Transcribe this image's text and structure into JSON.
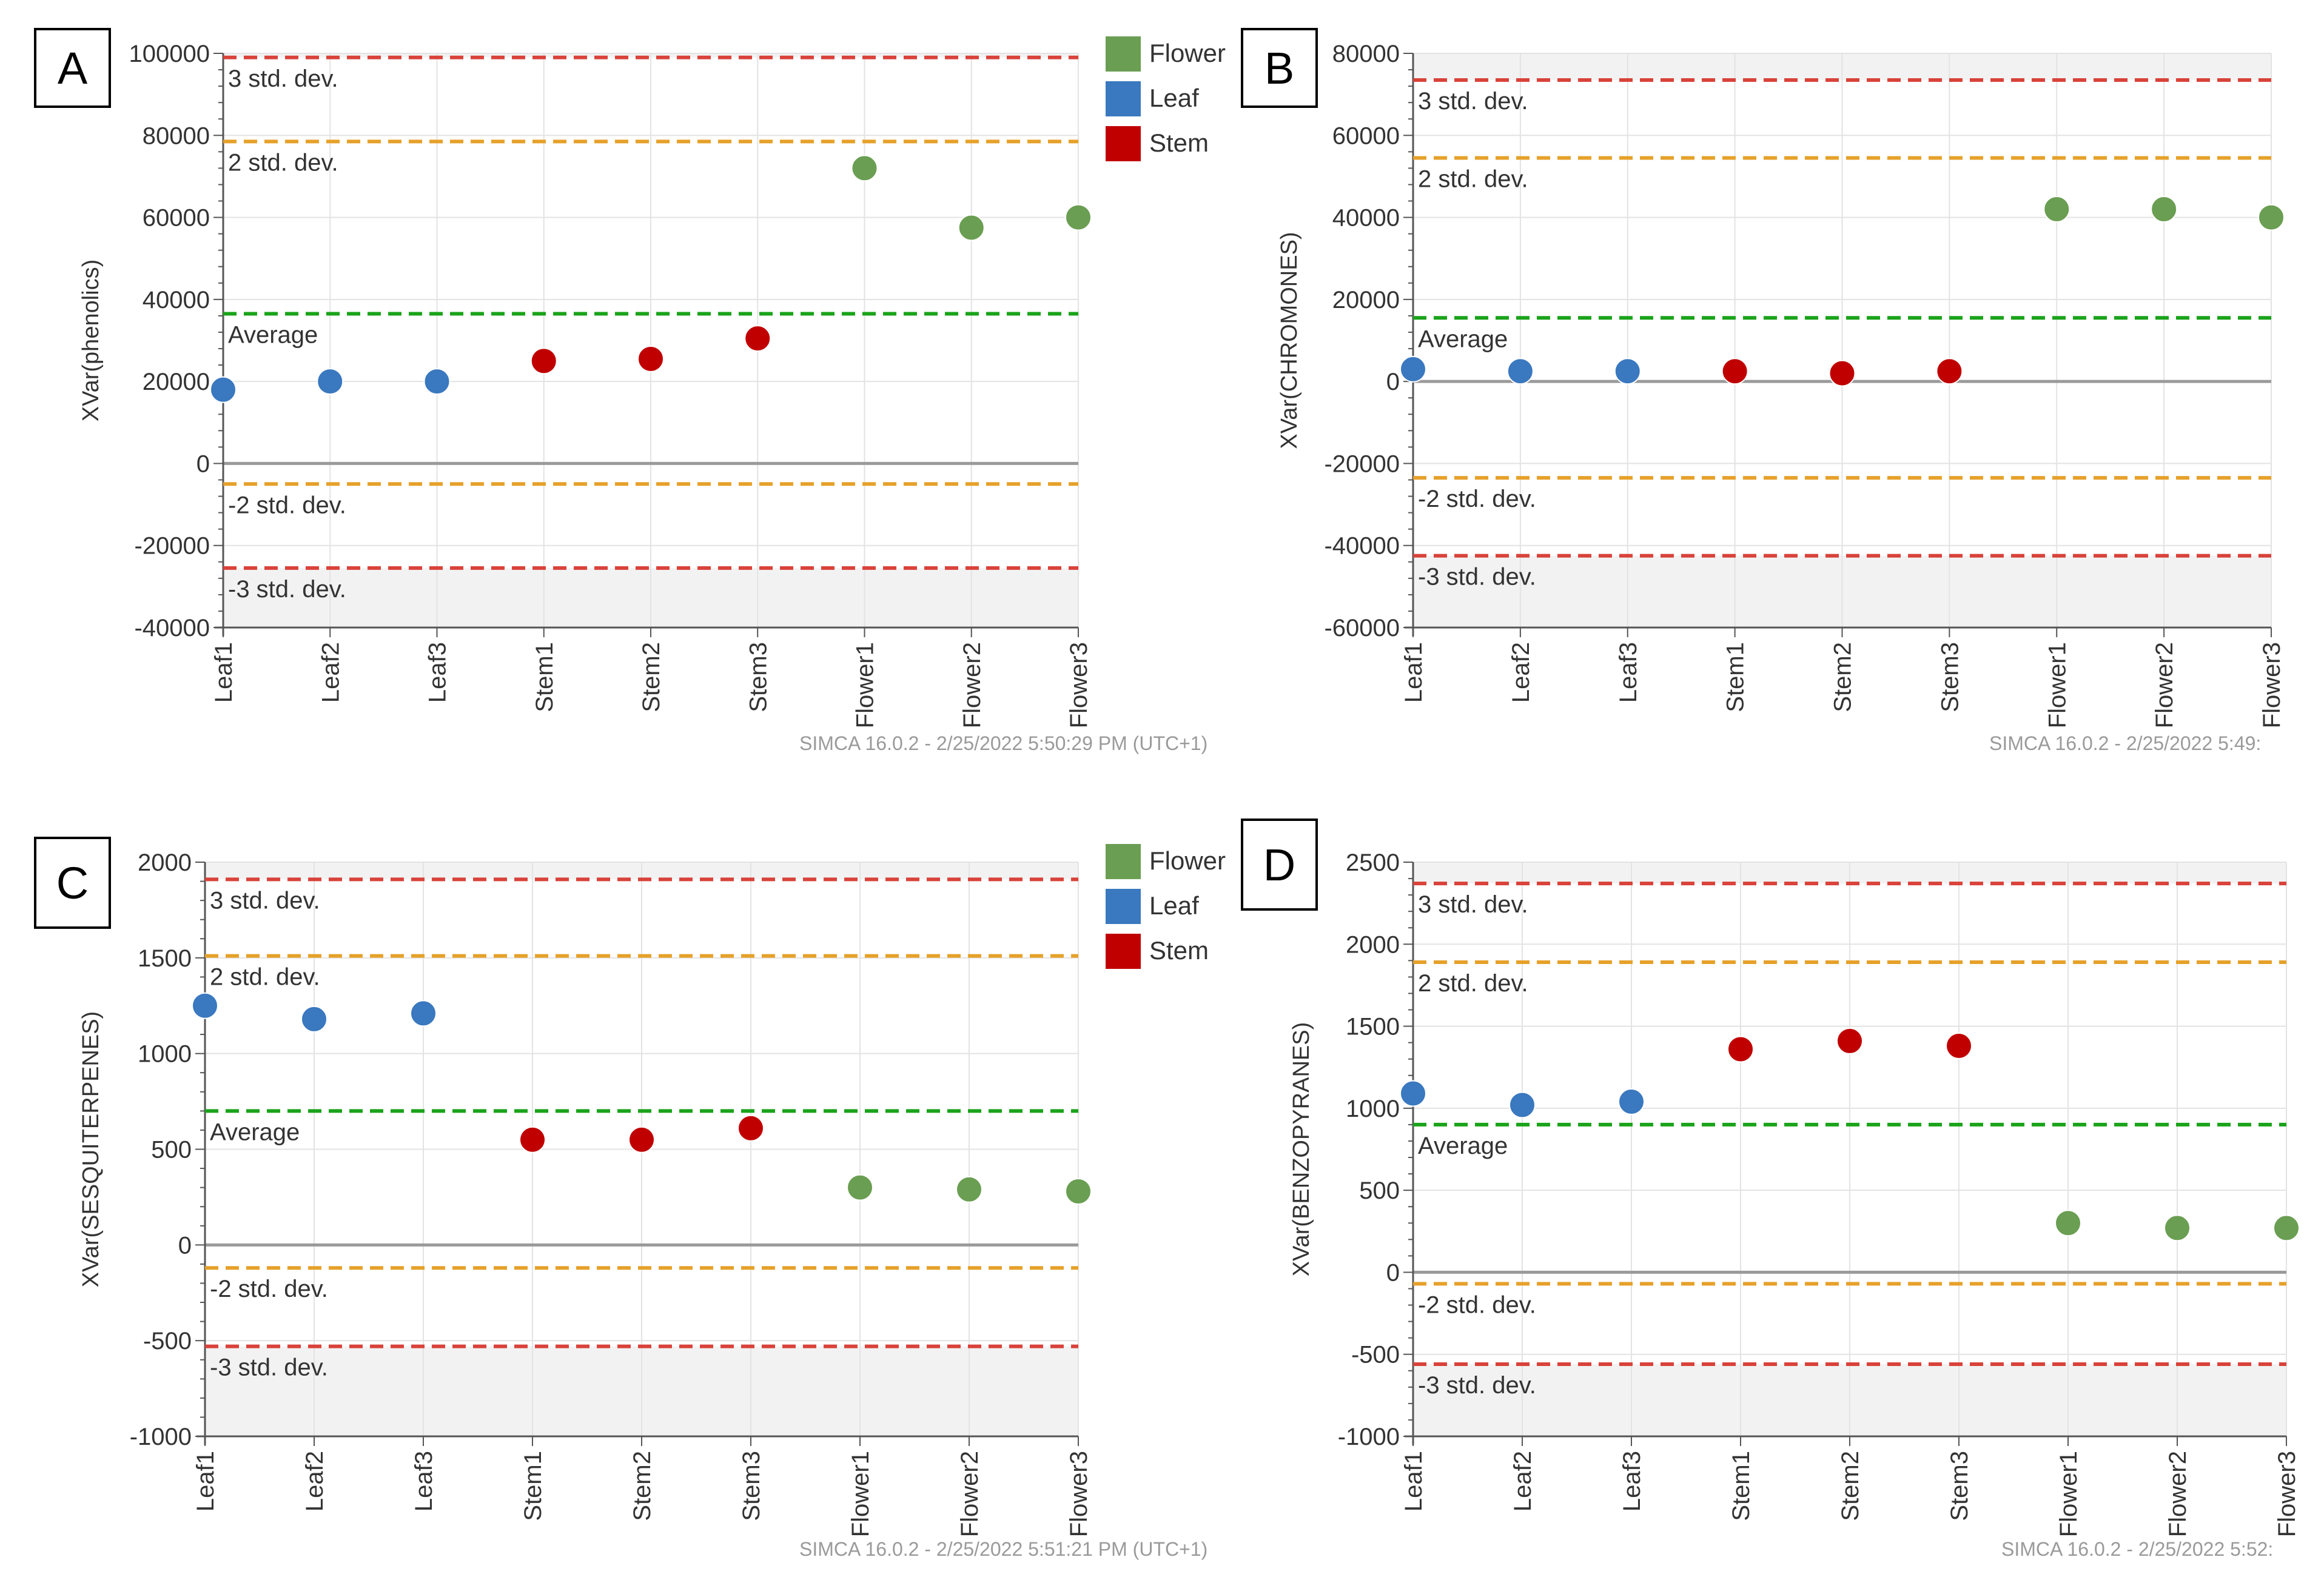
{
  "legend": {
    "items": [
      {
        "label": "Flower",
        "color": "#6a9e52"
      },
      {
        "label": "Leaf",
        "color": "#3a78bf"
      },
      {
        "label": "Stem",
        "color": "#c00000"
      }
    ]
  },
  "colors": {
    "flower": "#6a9e52",
    "leaf": "#3a78bf",
    "stem": "#c00000",
    "sd3": "#d9423a",
    "sd2": "#e6a12a",
    "average": "#1aa31a",
    "zero": "#9a9a9a",
    "band": "#f2f2f2",
    "grid": "#e3e3e3",
    "axis": "#555555",
    "text": "#333333",
    "footer": "#9a9a9a"
  },
  "chart_data": [
    {
      "type": "scatter",
      "panel_label": "A",
      "ylabel": "XVar(phenolics)",
      "ylim": [
        -40000,
        100000
      ],
      "yticks": [
        -40000,
        -20000,
        0,
        20000,
        40000,
        60000,
        80000,
        100000
      ],
      "ytick_labels": [
        "-40000",
        "-20000",
        "0",
        "20000",
        "40000",
        "60000",
        "80000",
        "100000"
      ],
      "categories": [
        "Leaf1",
        "Leaf2",
        "Leaf3",
        "Stem1",
        "Stem2",
        "Stem3",
        "Flower1",
        "Flower2",
        "Flower3"
      ],
      "groups": [
        "Leaf",
        "Leaf",
        "Leaf",
        "Stem",
        "Stem",
        "Stem",
        "Flower",
        "Flower",
        "Flower"
      ],
      "values": [
        18000,
        20000,
        20000,
        25000,
        25500,
        30500,
        72000,
        57500,
        60000
      ],
      "lines": [
        {
          "label": "3 std. dev.",
          "value": 99000,
          "kind": "sd3"
        },
        {
          "label": "2 std. dev.",
          "value": 78500,
          "kind": "sd2"
        },
        {
          "label": "Average",
          "value": 36500,
          "kind": "average"
        },
        {
          "label": "-2 std. dev.",
          "value": -5000,
          "kind": "sd2"
        },
        {
          "label": "-3 std. dev.",
          "value": -25500,
          "kind": "sd3"
        }
      ],
      "footer": "SIMCA 16.0.2 - 2/25/2022 5:50:29 PM (UTC+1)"
    },
    {
      "type": "scatter",
      "panel_label": "B",
      "ylabel": "XVar(CHROMONES)",
      "ylim": [
        -60000,
        80000
      ],
      "yticks": [
        -60000,
        -40000,
        -20000,
        0,
        20000,
        40000,
        60000,
        80000
      ],
      "ytick_labels": [
        "-60000",
        "-40000",
        "-20000",
        "0",
        "20000",
        "40000",
        "60000",
        "80000"
      ],
      "categories": [
        "Leaf1",
        "Leaf2",
        "Leaf3",
        "Stem1",
        "Stem2",
        "Stem3",
        "Flower1",
        "Flower2",
        "Flower3"
      ],
      "groups": [
        "Leaf",
        "Leaf",
        "Leaf",
        "Stem",
        "Stem",
        "Stem",
        "Flower",
        "Flower",
        "Flower"
      ],
      "values": [
        3000,
        2500,
        2500,
        2500,
        2000,
        2500,
        42000,
        42000,
        40000
      ],
      "lines": [
        {
          "label": "3 std. dev.",
          "value": 73500,
          "kind": "sd3"
        },
        {
          "label": "2 std. dev.",
          "value": 54500,
          "kind": "sd2"
        },
        {
          "label": "Average",
          "value": 15500,
          "kind": "average"
        },
        {
          "label": "-2 std. dev.",
          "value": -23500,
          "kind": "sd2"
        },
        {
          "label": "-3 std. dev.",
          "value": -42500,
          "kind": "sd3"
        }
      ],
      "footer": "SIMCA 16.0.2 - 2/25/2022 5:49:"
    },
    {
      "type": "scatter",
      "panel_label": "C",
      "ylabel": "XVar(SESQUITERPENES)",
      "ylim": [
        -1000,
        2000
      ],
      "yticks": [
        -1000,
        -500,
        0,
        500,
        1000,
        1500,
        2000
      ],
      "ytick_labels": [
        "-1000",
        "-500",
        "0",
        "500",
        "1000",
        "1500",
        "2000"
      ],
      "categories": [
        "Leaf1",
        "Leaf2",
        "Leaf3",
        "Stem1",
        "Stem2",
        "Stem3",
        "Flower1",
        "Flower2",
        "Flower3"
      ],
      "groups": [
        "Leaf",
        "Leaf",
        "Leaf",
        "Stem",
        "Stem",
        "Stem",
        "Flower",
        "Flower",
        "Flower"
      ],
      "values": [
        1250,
        1180,
        1210,
        550,
        550,
        610,
        300,
        290,
        280
      ],
      "lines": [
        {
          "label": "3 std. dev.",
          "value": 1910,
          "kind": "sd3"
        },
        {
          "label": "2 std. dev.",
          "value": 1510,
          "kind": "sd2"
        },
        {
          "label": "Average",
          "value": 700,
          "kind": "average"
        },
        {
          "label": "-2 std. dev.",
          "value": -120,
          "kind": "sd2"
        },
        {
          "label": "-3 std. dev.",
          "value": -530,
          "kind": "sd3"
        }
      ],
      "footer": "SIMCA 16.0.2 - 2/25/2022 5:51:21 PM (UTC+1)"
    },
    {
      "type": "scatter",
      "panel_label": "D",
      "ylabel": "XVar(BENZOPYRANES)",
      "ylim": [
        -1000,
        2500
      ],
      "yticks": [
        -1000,
        -500,
        0,
        500,
        1000,
        1500,
        2000,
        2500
      ],
      "ytick_labels": [
        "-1000",
        "-500",
        "0",
        "500",
        "1000",
        "1500",
        "2000",
        "2500"
      ],
      "categories": [
        "Leaf1",
        "Leaf2",
        "Leaf3",
        "Stem1",
        "Stem2",
        "Stem3",
        "Flower1",
        "Flower2",
        "Flower3"
      ],
      "groups": [
        "Leaf",
        "Leaf",
        "Leaf",
        "Stem",
        "Stem",
        "Stem",
        "Flower",
        "Flower",
        "Flower"
      ],
      "values": [
        1090,
        1020,
        1040,
        1360,
        1410,
        1380,
        300,
        270,
        270
      ],
      "lines": [
        {
          "label": "3 std. dev.",
          "value": 2370,
          "kind": "sd3"
        },
        {
          "label": "2 std. dev.",
          "value": 1890,
          "kind": "sd2"
        },
        {
          "label": "Average",
          "value": 900,
          "kind": "average"
        },
        {
          "label": "-2 std. dev.",
          "value": -70,
          "kind": "sd2"
        },
        {
          "label": "-3 std. dev.",
          "value": -560,
          "kind": "sd3"
        }
      ],
      "footer": "SIMCA 16.0.2 - 2/25/2022 5:52:"
    }
  ]
}
